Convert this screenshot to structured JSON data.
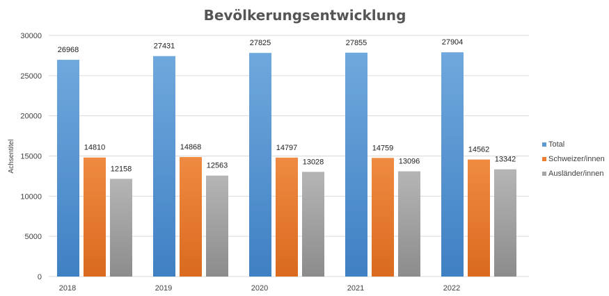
{
  "chart_data": {
    "type": "bar",
    "title": "Bevölkerungsentwicklung",
    "ylabel": "Achsentitel",
    "xlabel": "",
    "categories": [
      "2018",
      "2019",
      "2020",
      "2021",
      "2022"
    ],
    "series": [
      {
        "name": "Total",
        "color": "#5b9bd5",
        "values": [
          26968,
          27431,
          27825,
          27855,
          27904
        ]
      },
      {
        "name": "Schweizer/innen",
        "color": "#ed7d31",
        "values": [
          14810,
          14868,
          14797,
          14759,
          14562
        ]
      },
      {
        "name": "Ausländer/innen",
        "color": "#a5a5a5",
        "values": [
          12158,
          12563,
          13028,
          13096,
          13342
        ]
      }
    ],
    "ylim": [
      0,
      30000
    ],
    "yticks": [
      0,
      5000,
      10000,
      15000,
      20000,
      25000,
      30000
    ],
    "grid": true,
    "legend_position": "right"
  }
}
